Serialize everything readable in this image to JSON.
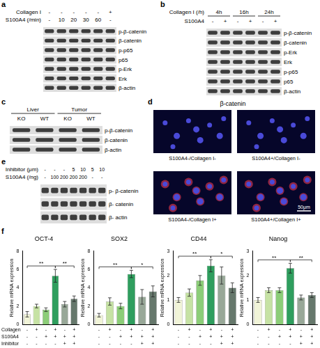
{
  "panels": {
    "a": {
      "letter": "a",
      "conditions": [
        {
          "label": "Collagen I",
          "lanes": [
            "-",
            "-",
            "-",
            "-",
            "-",
            "+"
          ]
        },
        {
          "label": "S100A4 (/min)",
          "lanes": [
            "-",
            "10",
            "20",
            "30",
            "60",
            "-"
          ]
        }
      ],
      "bands": [
        "p-β-catenin",
        "β-catenin",
        "p-p65",
        "p65",
        "p-Erk",
        "Erk",
        "β-actin"
      ]
    },
    "b": {
      "letter": "b",
      "group_row": {
        "label": "Collagen I (/h)",
        "groups": [
          {
            "label": "4h",
            "span": 2
          },
          {
            "label": "16h",
            "span": 2
          },
          {
            "label": "24h",
            "span": 2
          }
        ]
      },
      "conditions": [
        {
          "label": "S100A4",
          "lanes": [
            "-",
            "+",
            "-",
            "+",
            "-",
            "+"
          ]
        }
      ],
      "bands": [
        "p-β-catenin",
        "β-catenin",
        "p-Erk",
        "Erk",
        "p-p65",
        "p65",
        "β-actin"
      ]
    },
    "c": {
      "letter": "c",
      "group_row": {
        "groups": [
          {
            "label": "Liver",
            "span": 2
          },
          {
            "label": "Tumor",
            "span": 2
          }
        ]
      },
      "conditions": [
        {
          "lanes": [
            "KO",
            "WT",
            "KO",
            "WT"
          ]
        }
      ],
      "bands": [
        "p-β-catenin",
        "β-catenin",
        "β-actin"
      ]
    },
    "d": {
      "letter": "d",
      "title": "β-catenin",
      "images": [
        "S100A4-/Collagen I-",
        "S100A4+/Collagen I-",
        "S100A4-/Collagen I+",
        "S100A4+/Collagen I+"
      ],
      "scale_bar": "50μm"
    },
    "e": {
      "letter": "e",
      "conditions": [
        {
          "label": "Inhibitor (μm)",
          "lanes": [
            "-",
            "-",
            "-",
            "5",
            "10",
            "5",
            "10"
          ]
        },
        {
          "label": "S100A4 (/ng)",
          "lanes": [
            "-",
            "100",
            "200",
            "200",
            "200",
            "-",
            "-"
          ]
        }
      ],
      "bands": [
        "p- β-catenin",
        "β- catenin",
        "β- actin"
      ]
    },
    "f": {
      "letter": "f",
      "conditions": [
        {
          "label": "Collagen",
          "lanes": [
            "-",
            "+",
            "-",
            "+",
            "-",
            "+"
          ]
        },
        {
          "label": "S100A4",
          "lanes": [
            "-",
            "-",
            "+",
            "+",
            "+",
            "+"
          ]
        },
        {
          "label": "Inhibitor",
          "lanes": [
            "-",
            "-",
            "-",
            "-",
            "+",
            "+"
          ]
        }
      ]
    }
  },
  "chart_data": [
    {
      "type": "bar",
      "title": "OCT-4",
      "y_label": "Relative mRNA expression",
      "categories": [
        null,
        null,
        null,
        null,
        null,
        null
      ],
      "values": [
        1.1,
        2.0,
        1.6,
        5.3,
        2.2,
        2.8
      ],
      "errors": [
        0.3,
        0.2,
        0.2,
        0.7,
        0.3,
        0.3
      ],
      "colors": [
        "#f1f4d8",
        "#c6e2a4",
        "#8ccd78",
        "#2f9e5e",
        "#98a898",
        "#66786c"
      ],
      "ylim": [
        0,
        8
      ],
      "yticks": [
        0,
        2,
        4,
        6,
        8
      ],
      "grid": false,
      "significance": [
        {
          "from": 0,
          "to": 3,
          "label": "**"
        },
        {
          "from": 3,
          "to": 5,
          "label": "**"
        }
      ]
    },
    {
      "type": "bar",
      "title": "SOX2",
      "y_label": "Relative mRNA expression",
      "categories": [
        null,
        null,
        null,
        null,
        null,
        null
      ],
      "values": [
        1.0,
        2.5,
        2.0,
        5.5,
        3.0,
        3.6
      ],
      "errors": [
        0.2,
        0.4,
        0.3,
        0.4,
        0.8,
        0.6
      ],
      "colors": [
        "#f1f4d8",
        "#c6e2a4",
        "#8ccd78",
        "#2f9e5e",
        "#98a898",
        "#66786c"
      ],
      "ylim": [
        0,
        8
      ],
      "yticks": [
        0,
        2,
        4,
        6,
        8
      ],
      "grid": false,
      "significance": [
        {
          "from": 0,
          "to": 3,
          "label": "**"
        },
        {
          "from": 3,
          "to": 5,
          "label": "*"
        }
      ]
    },
    {
      "type": "bar",
      "title": "CD44",
      "y_label": "Relative mRNA expression",
      "categories": [
        null,
        null,
        null,
        null,
        null,
        null
      ],
      "values": [
        1.0,
        1.3,
        1.8,
        2.4,
        2.0,
        1.5
      ],
      "errors": [
        0.1,
        0.15,
        0.2,
        0.25,
        0.35,
        0.2
      ],
      "colors": [
        "#f1f4d8",
        "#c6e2a4",
        "#8ccd78",
        "#2f9e5e",
        "#98a898",
        "#66786c"
      ],
      "ylim": [
        0,
        3
      ],
      "yticks": [
        0,
        1,
        2,
        3
      ],
      "grid": false,
      "significance": [
        {
          "from": 0,
          "to": 3,
          "label": "**"
        },
        {
          "from": 3,
          "to": 5,
          "label": "*"
        }
      ]
    },
    {
      "type": "bar",
      "title": "Nanog",
      "y_label": "Relative mRNA expression",
      "categories": [
        null,
        null,
        null,
        null,
        null,
        null
      ],
      "values": [
        1.0,
        1.4,
        1.4,
        2.3,
        1.1,
        1.2
      ],
      "errors": [
        0.1,
        0.1,
        0.1,
        0.2,
        0.1,
        0.1
      ],
      "colors": [
        "#f1f4d8",
        "#c6e2a4",
        "#8ccd78",
        "#2f9e5e",
        "#98a898",
        "#66786c"
      ],
      "ylim": [
        0,
        3
      ],
      "yticks": [
        0,
        1,
        2,
        3
      ],
      "grid": false,
      "significance": [
        {
          "from": 0,
          "to": 3,
          "label": "**"
        },
        {
          "from": 3,
          "to": 5,
          "label": "**"
        }
      ]
    }
  ]
}
